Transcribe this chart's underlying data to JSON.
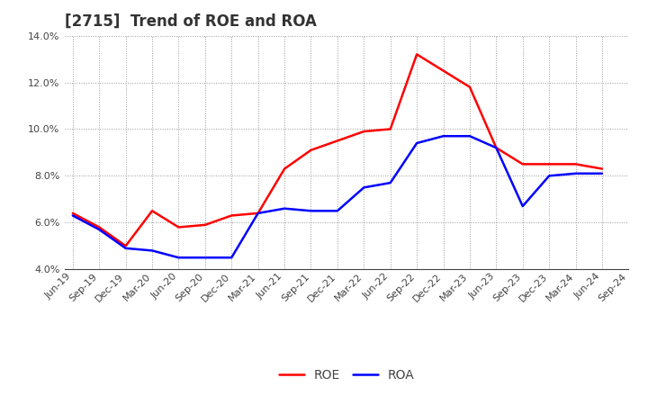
{
  "title": "[2715]  Trend of ROE and ROA",
  "x_labels": [
    "Jun-19",
    "Sep-19",
    "Dec-19",
    "Mar-20",
    "Jun-20",
    "Sep-20",
    "Dec-20",
    "Mar-21",
    "Jun-21",
    "Sep-21",
    "Dec-21",
    "Mar-22",
    "Jun-22",
    "Sep-22",
    "Dec-22",
    "Mar-23",
    "Jun-23",
    "Sep-23",
    "Dec-23",
    "Mar-24",
    "Jun-24",
    "Sep-24"
  ],
  "roe": [
    6.4,
    5.8,
    5.0,
    6.5,
    5.8,
    5.9,
    6.3,
    6.4,
    8.3,
    9.1,
    9.5,
    9.9,
    10.0,
    13.2,
    12.5,
    11.8,
    9.2,
    8.5,
    8.5,
    8.5,
    8.3,
    null
  ],
  "roa": [
    6.3,
    5.7,
    4.9,
    4.8,
    4.5,
    4.5,
    4.5,
    6.4,
    6.6,
    6.5,
    6.5,
    7.5,
    7.7,
    9.4,
    9.7,
    9.7,
    9.2,
    6.7,
    8.0,
    8.1,
    8.1,
    null
  ],
  "ylim_min": 0.04,
  "ylim_max": 0.14,
  "yticks": [
    0.04,
    0.06,
    0.08,
    0.1,
    0.12,
    0.14
  ],
  "roe_color": "#FF0000",
  "roa_color": "#0000FF",
  "background_color": "#FFFFFF",
  "grid_color": "#999999",
  "line_width": 1.8,
  "title_fontsize": 12,
  "title_color": "#333333",
  "legend_fontsize": 10,
  "tick_fontsize": 8,
  "tick_color": "#444444"
}
